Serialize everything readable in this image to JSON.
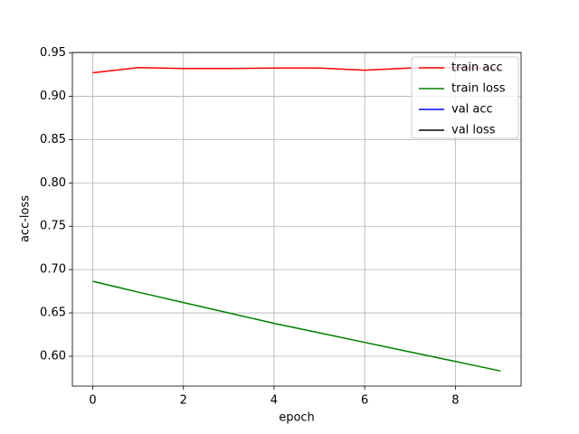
{
  "chart_data": {
    "type": "line",
    "x": [
      0,
      1,
      2,
      3,
      4,
      5,
      6,
      7,
      8,
      9
    ],
    "series": [
      {
        "name": "train acc",
        "color": "red",
        "values": [
          0.927,
          0.933,
          0.932,
          0.932,
          0.9325,
          0.9325,
          0.93,
          0.9325,
          0.933,
          0.932
        ]
      },
      {
        "name": "train loss",
        "color": "green",
        "values": [
          0.6865,
          0.674,
          0.662,
          0.65,
          0.638,
          0.627,
          0.616,
          0.605,
          0.594,
          0.583
        ]
      },
      {
        "name": "val acc",
        "color": "blue",
        "values": [
          null,
          null,
          null,
          null,
          null,
          null,
          null,
          null,
          null,
          null
        ]
      },
      {
        "name": "val loss",
        "color": "black",
        "values": [
          null,
          null,
          null,
          null,
          null,
          null,
          null,
          null,
          null,
          null
        ]
      }
    ],
    "xlabel": "epoch",
    "ylabel": "acc-loss",
    "xlim": [
      -0.45,
      9.45
    ],
    "xticks": [
      0,
      2,
      4,
      6,
      8
    ],
    "ylim": [
      0.5656,
      0.9505
    ],
    "yticks": [
      {
        "value": 0.6,
        "label": "0.60"
      },
      0.65,
      {
        "value": 0.7,
        "label": "0.70"
      },
      0.75,
      {
        "value": 0.8,
        "label": "0.80"
      },
      0.85,
      {
        "value": 0.9,
        "label": "0.90"
      },
      0.95
    ],
    "grid": true,
    "legend": "upper right"
  }
}
